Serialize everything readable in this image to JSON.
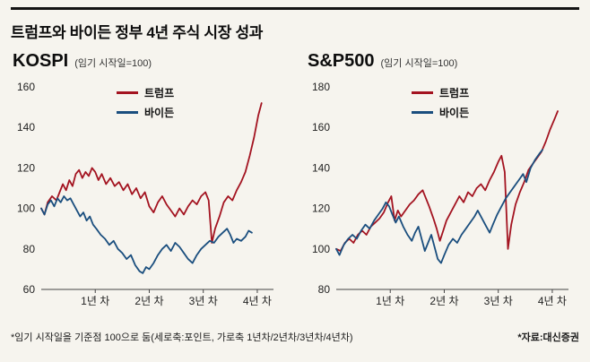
{
  "page": {
    "title": "트럼프와 바이든 정부 4년 주식 시장 성과",
    "footnote_left": "*임기 시작일을 기준점 100으로 둠(세로축:포인트, 가로축 1년차/2년차/3년차/4년차)",
    "footnote_right": "*자료:대신증권"
  },
  "legend": {
    "trump": "트럼프",
    "biden": "바이든"
  },
  "colors": {
    "trump": "#a31320",
    "biden": "#1a4e7e",
    "axis": "#444444",
    "tick_text": "#222222",
    "background": "#f6f4ee"
  },
  "chart_data": [
    {
      "type": "line",
      "title": "KOSPI",
      "subtitle": "(임기 시작일=100)",
      "ylim": [
        60,
        160
      ],
      "yticks": [
        60,
        80,
        100,
        120,
        140,
        160
      ],
      "x_range": [
        0,
        4.3
      ],
      "xticks": [
        1,
        2,
        3,
        4
      ],
      "xlabel_ticks": [
        "1년 차",
        "2년 차",
        "3년 차",
        "4년 차"
      ],
      "grid": false,
      "legend_position": "top-center",
      "series": [
        {
          "name": "트럼프",
          "color_key": "trump",
          "points": [
            [
              0,
              100
            ],
            [
              0.06,
              97
            ],
            [
              0.12,
              103
            ],
            [
              0.2,
              106
            ],
            [
              0.28,
              104
            ],
            [
              0.34,
              108
            ],
            [
              0.4,
              112
            ],
            [
              0.46,
              109
            ],
            [
              0.52,
              114
            ],
            [
              0.58,
              111
            ],
            [
              0.64,
              117
            ],
            [
              0.7,
              119
            ],
            [
              0.76,
              115
            ],
            [
              0.82,
              118
            ],
            [
              0.88,
              116
            ],
            [
              0.94,
              120
            ],
            [
              1,
              118
            ],
            [
              1.06,
              114
            ],
            [
              1.12,
              117
            ],
            [
              1.2,
              112
            ],
            [
              1.28,
              115
            ],
            [
              1.36,
              111
            ],
            [
              1.44,
              113
            ],
            [
              1.52,
              109
            ],
            [
              1.6,
              112
            ],
            [
              1.68,
              107
            ],
            [
              1.76,
              110
            ],
            [
              1.84,
              105
            ],
            [
              1.92,
              108
            ],
            [
              2,
              101
            ],
            [
              2.08,
              98
            ],
            [
              2.16,
              103
            ],
            [
              2.24,
              106
            ],
            [
              2.32,
              102
            ],
            [
              2.4,
              99
            ],
            [
              2.48,
              96
            ],
            [
              2.56,
              100
            ],
            [
              2.64,
              97
            ],
            [
              2.72,
              101
            ],
            [
              2.8,
              104
            ],
            [
              2.88,
              102
            ],
            [
              2.96,
              106
            ],
            [
              3.04,
              108
            ],
            [
              3.1,
              104
            ],
            [
              3.16,
              83
            ],
            [
              3.22,
              90
            ],
            [
              3.3,
              96
            ],
            [
              3.38,
              103
            ],
            [
              3.46,
              106
            ],
            [
              3.54,
              104
            ],
            [
              3.62,
              109
            ],
            [
              3.7,
              113
            ],
            [
              3.78,
              118
            ],
            [
              3.86,
              126
            ],
            [
              3.94,
              135
            ],
            [
              4.02,
              146
            ],
            [
              4.08,
              152
            ]
          ]
        },
        {
          "name": "바이든",
          "color_key": "biden",
          "points": [
            [
              0,
              100
            ],
            [
              0.06,
              97
            ],
            [
              0.12,
              102
            ],
            [
              0.18,
              104
            ],
            [
              0.24,
              101
            ],
            [
              0.3,
              105
            ],
            [
              0.36,
              103
            ],
            [
              0.42,
              106
            ],
            [
              0.48,
              104
            ],
            [
              0.54,
              105
            ],
            [
              0.6,
              102
            ],
            [
              0.66,
              99
            ],
            [
              0.72,
              96
            ],
            [
              0.78,
              98
            ],
            [
              0.84,
              94
            ],
            [
              0.9,
              96
            ],
            [
              0.96,
              92
            ],
            [
              1.02,
              90
            ],
            [
              1.1,
              87
            ],
            [
              1.18,
              85
            ],
            [
              1.26,
              82
            ],
            [
              1.34,
              84
            ],
            [
              1.42,
              80
            ],
            [
              1.5,
              78
            ],
            [
              1.58,
              75
            ],
            [
              1.66,
              77
            ],
            [
              1.74,
              72
            ],
            [
              1.82,
              69
            ],
            [
              1.88,
              68
            ],
            [
              1.94,
              71
            ],
            [
              2,
              70
            ],
            [
              2.08,
              73
            ],
            [
              2.16,
              77
            ],
            [
              2.24,
              80
            ],
            [
              2.32,
              82
            ],
            [
              2.4,
              79
            ],
            [
              2.48,
              83
            ],
            [
              2.56,
              81
            ],
            [
              2.64,
              78
            ],
            [
              2.72,
              75
            ],
            [
              2.8,
              73
            ],
            [
              2.88,
              77
            ],
            [
              2.96,
              80
            ],
            [
              3.04,
              82
            ],
            [
              3.12,
              84
            ],
            [
              3.2,
              83
            ],
            [
              3.28,
              86
            ],
            [
              3.36,
              88
            ],
            [
              3.44,
              90
            ],
            [
              3.5,
              87
            ],
            [
              3.56,
              83
            ],
            [
              3.62,
              85
            ],
            [
              3.7,
              84
            ],
            [
              3.78,
              86
            ],
            [
              3.84,
              89
            ],
            [
              3.9,
              88
            ]
          ]
        }
      ]
    },
    {
      "type": "line",
      "title": "S&P500",
      "subtitle": "(임기 시작일=100)",
      "ylim": [
        80,
        180
      ],
      "yticks": [
        80,
        100,
        120,
        140,
        160,
        180
      ],
      "x_range": [
        0,
        4.3
      ],
      "xticks": [
        1,
        2,
        3,
        4
      ],
      "xlabel_ticks": [
        "1년 차",
        "2년 차",
        "3년 차",
        "4년 차"
      ],
      "grid": false,
      "legend_position": "top-center",
      "series": [
        {
          "name": "트럼프",
          "color_key": "trump",
          "points": [
            [
              0,
              100
            ],
            [
              0.08,
              99
            ],
            [
              0.16,
              103
            ],
            [
              0.24,
              105
            ],
            [
              0.32,
              103
            ],
            [
              0.4,
              107
            ],
            [
              0.48,
              109
            ],
            [
              0.56,
              107
            ],
            [
              0.64,
              111
            ],
            [
              0.72,
              113
            ],
            [
              0.8,
              115
            ],
            [
              0.88,
              118
            ],
            [
              0.96,
              123
            ],
            [
              1.02,
              126
            ],
            [
              1.08,
              114
            ],
            [
              1.14,
              119
            ],
            [
              1.2,
              116
            ],
            [
              1.28,
              119
            ],
            [
              1.36,
              122
            ],
            [
              1.44,
              124
            ],
            [
              1.52,
              127
            ],
            [
              1.6,
              129
            ],
            [
              1.66,
              125
            ],
            [
              1.72,
              121
            ],
            [
              1.8,
              115
            ],
            [
              1.86,
              110
            ],
            [
              1.92,
              104
            ],
            [
              1.98,
              109
            ],
            [
              2.04,
              114
            ],
            [
              2.12,
              118
            ],
            [
              2.2,
              122
            ],
            [
              2.28,
              126
            ],
            [
              2.36,
              123
            ],
            [
              2.44,
              128
            ],
            [
              2.52,
              126
            ],
            [
              2.6,
              130
            ],
            [
              2.68,
              132
            ],
            [
              2.76,
              129
            ],
            [
              2.84,
              134
            ],
            [
              2.92,
              138
            ],
            [
              3,
              143
            ],
            [
              3.06,
              146
            ],
            [
              3.12,
              138
            ],
            [
              3.18,
              100
            ],
            [
              3.24,
              112
            ],
            [
              3.32,
              122
            ],
            [
              3.4,
              128
            ],
            [
              3.48,
              133
            ],
            [
              3.56,
              139
            ],
            [
              3.64,
              142
            ],
            [
              3.72,
              145
            ],
            [
              3.8,
              148
            ],
            [
              3.88,
              153
            ],
            [
              3.96,
              159
            ],
            [
              4.04,
              164
            ],
            [
              4.1,
              168
            ]
          ]
        },
        {
          "name": "바이든",
          "color_key": "biden",
          "points": [
            [
              0,
              100
            ],
            [
              0.06,
              97
            ],
            [
              0.14,
              102
            ],
            [
              0.22,
              105
            ],
            [
              0.3,
              107
            ],
            [
              0.38,
              105
            ],
            [
              0.46,
              109
            ],
            [
              0.54,
              112
            ],
            [
              0.62,
              110
            ],
            [
              0.7,
              114
            ],
            [
              0.78,
              117
            ],
            [
              0.86,
              120
            ],
            [
              0.92,
              123
            ],
            [
              0.98,
              121
            ],
            [
              1.04,
              117
            ],
            [
              1.1,
              113
            ],
            [
              1.16,
              116
            ],
            [
              1.24,
              111
            ],
            [
              1.32,
              107
            ],
            [
              1.4,
              104
            ],
            [
              1.46,
              108
            ],
            [
              1.52,
              111
            ],
            [
              1.58,
              105
            ],
            [
              1.64,
              99
            ],
            [
              1.7,
              103
            ],
            [
              1.76,
              107
            ],
            [
              1.82,
              101
            ],
            [
              1.88,
              95
            ],
            [
              1.94,
              93
            ],
            [
              2,
              97
            ],
            [
              2.08,
              102
            ],
            [
              2.16,
              105
            ],
            [
              2.24,
              103
            ],
            [
              2.32,
              107
            ],
            [
              2.4,
              110
            ],
            [
              2.48,
              113
            ],
            [
              2.56,
              116
            ],
            [
              2.62,
              119
            ],
            [
              2.7,
              115
            ],
            [
              2.78,
              111
            ],
            [
              2.84,
              108
            ],
            [
              2.9,
              112
            ],
            [
              2.98,
              117
            ],
            [
              3.06,
              121
            ],
            [
              3.14,
              125
            ],
            [
              3.22,
              128
            ],
            [
              3.3,
              131
            ],
            [
              3.38,
              134
            ],
            [
              3.46,
              137
            ],
            [
              3.52,
              133
            ],
            [
              3.6,
              140
            ],
            [
              3.68,
              144
            ],
            [
              3.76,
              147
            ],
            [
              3.82,
              149
            ]
          ]
        }
      ]
    }
  ]
}
